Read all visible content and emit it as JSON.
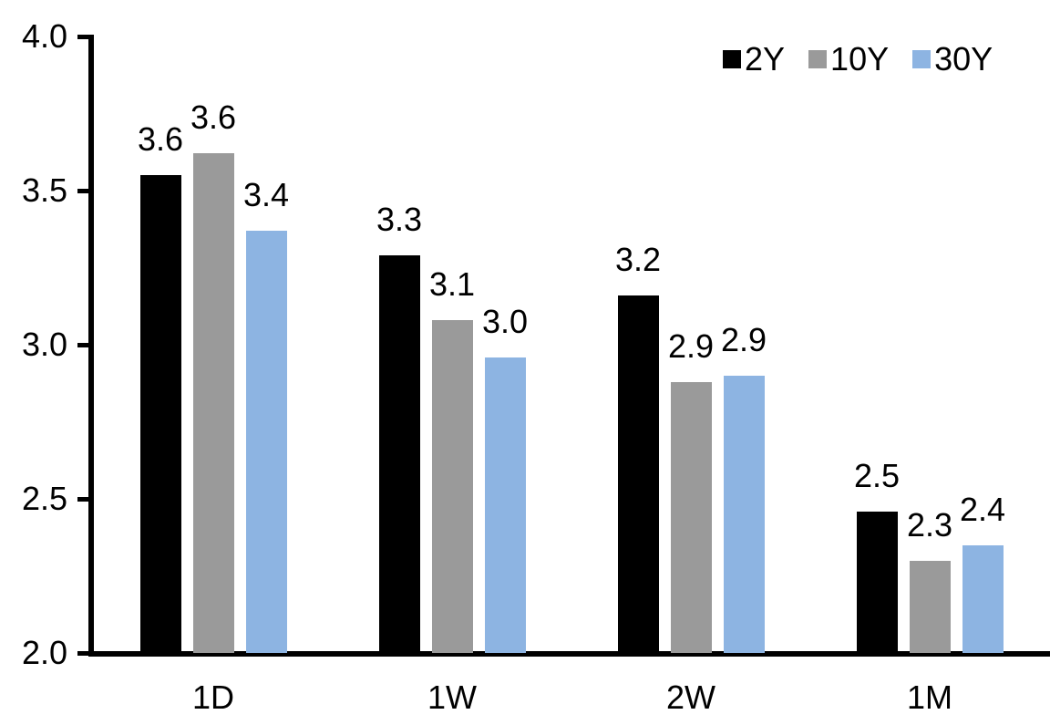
{
  "chart_data": {
    "type": "bar",
    "title": "",
    "xlabel": "",
    "ylabel": "",
    "categories": [
      "1D",
      "1W",
      "2W",
      "1M"
    ],
    "series": [
      {
        "name": "2Y",
        "color": "#000000",
        "values": [
          3.55,
          3.29,
          3.16,
          2.46
        ],
        "data_labels": [
          "3.6",
          "3.3",
          "3.2",
          "2.5"
        ]
      },
      {
        "name": "10Y",
        "color": "#9A9A9A",
        "values": [
          3.62,
          3.08,
          2.88,
          2.3
        ],
        "data_labels": [
          "3.6",
          "3.1",
          "2.9",
          "2.3"
        ]
      },
      {
        "name": "30Y",
        "color": "#8DB4E2",
        "values": [
          3.37,
          2.96,
          2.9,
          2.35
        ],
        "data_labels": [
          "3.4",
          "3.0",
          "2.9",
          "2.4"
        ]
      }
    ],
    "ylim": [
      2.0,
      4.0
    ],
    "y_tick_labels": [
      "4.0",
      "3.5",
      "3.0",
      "2.5",
      "2.0"
    ],
    "grid": false,
    "legend": {
      "position": "top-right",
      "entries": [
        "2Y",
        "10Y",
        "30Y"
      ]
    },
    "axis_color": "#000000",
    "text_color": "#000000",
    "background_color": "#FFFFFF"
  }
}
